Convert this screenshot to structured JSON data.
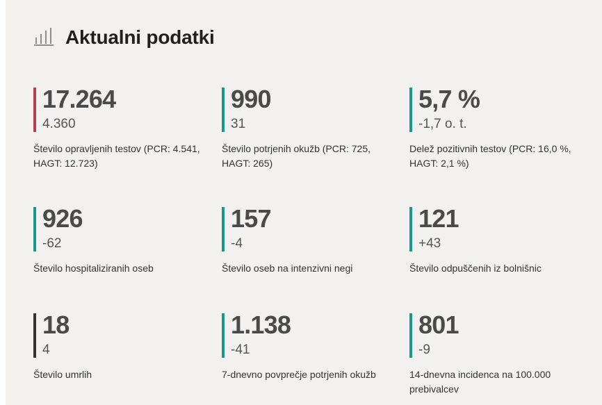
{
  "header": {
    "title": "Aktualni podatki",
    "icon": "bar-chart-icon"
  },
  "colors": {
    "red": "#b0434e",
    "teal": "#159a8c",
    "dark": "#333333"
  },
  "stats": [
    {
      "value": "17.264",
      "change": "4.360",
      "label": "Število opravljenih testov (PCR: 4.541, HAGT: 12.723)",
      "bar_color": "#b0434e"
    },
    {
      "value": "990",
      "change": "31",
      "label": "Število potrjenih okužb (PCR: 725, HAGT: 265)",
      "bar_color": "#159a8c"
    },
    {
      "value": "5,7 %",
      "change": "-1,7 o. t.",
      "label": "Delež pozitivnih testov (PCR: 16,0 %, HAGT: 2,1 %)",
      "bar_color": "#159a8c"
    },
    {
      "value": "926",
      "change": "-62",
      "label": "Število hospitaliziranih oseb",
      "bar_color": "#159a8c"
    },
    {
      "value": "157",
      "change": "-4",
      "label": "Število oseb na intenzivni negi",
      "bar_color": "#159a8c"
    },
    {
      "value": "121",
      "change": "+43",
      "label": "Število odpuščenih iz bolnišnic",
      "bar_color": "#159a8c"
    },
    {
      "value": "18",
      "change": "4",
      "label": "Število umrlih",
      "bar_color": "#333333"
    },
    {
      "value": "1.138",
      "change": "-41",
      "label": "7-dnevno povprečje potrjenih okužb",
      "bar_color": "#159a8c"
    },
    {
      "value": "801",
      "change": "-9",
      "label": "14-dnevna incidenca na 100.000 prebivalcev",
      "bar_color": "#159a8c"
    }
  ]
}
